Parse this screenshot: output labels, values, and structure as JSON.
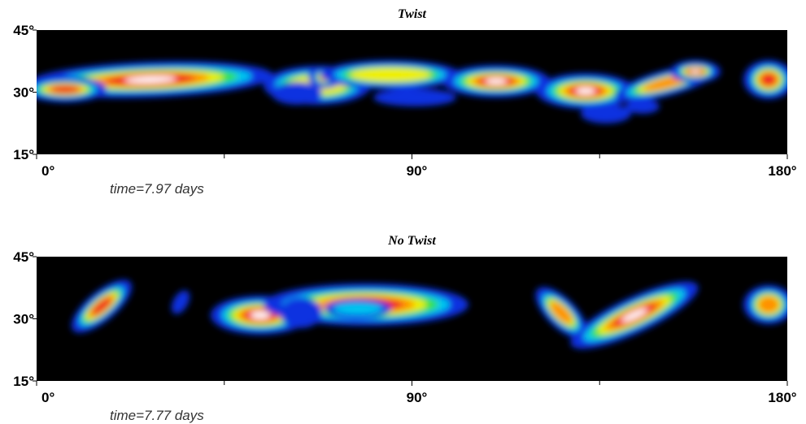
{
  "chart_data": [
    {
      "type": "heatmap",
      "title": "Twist",
      "annotation": "time=7.97 days",
      "xlim": [
        0,
        180
      ],
      "xticks": [
        {
          "value": 0,
          "label": "0°"
        },
        {
          "value": 90,
          "label": "90°"
        },
        {
          "value": 180,
          "label": "180°"
        }
      ],
      "xminor_ticks": [
        45,
        135
      ],
      "ylim": [
        15,
        45
      ],
      "yticks": [
        {
          "value": 15,
          "label": "15°"
        },
        {
          "value": 30,
          "label": "30°"
        },
        {
          "value": 45,
          "label": "45°"
        }
      ]
    },
    {
      "type": "heatmap",
      "title": "No Twist",
      "annotation": "time=7.77 days",
      "xlim": [
        0,
        180
      ],
      "xticks": [
        {
          "value": 0,
          "label": "0°"
        },
        {
          "value": 90,
          "label": "90°"
        },
        {
          "value": 180,
          "label": "180°"
        }
      ],
      "xminor_ticks": [
        45,
        135
      ],
      "ylim": [
        15,
        45
      ],
      "yticks": [
        {
          "value": 15,
          "label": "15°"
        },
        {
          "value": 30,
          "label": "30°"
        },
        {
          "value": 45,
          "label": "45°"
        }
      ]
    }
  ]
}
